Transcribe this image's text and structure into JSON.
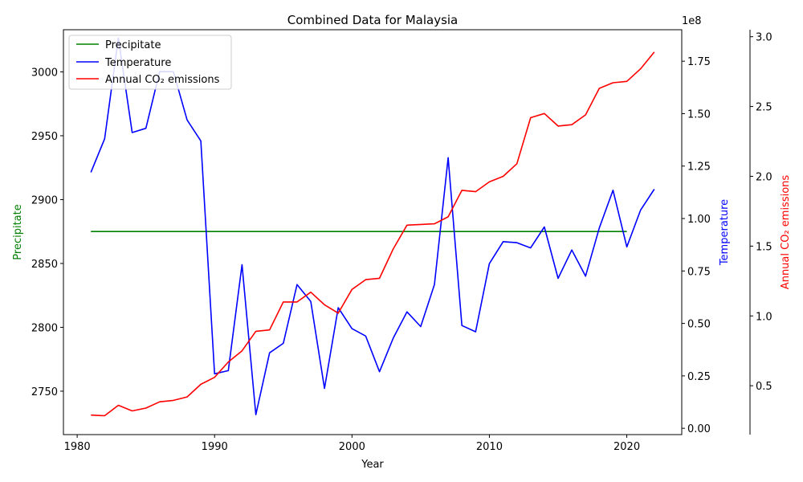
{
  "chart_data": {
    "type": "line",
    "title": "Combined Data for Malaysia",
    "xlabel": "Year",
    "xlim": [
      1979.0,
      2024.0
    ],
    "x_ticks": [
      1980,
      1990,
      2000,
      2010,
      2020
    ],
    "axes": {
      "left": {
        "label": "Precipitate",
        "color": "#008000",
        "ylim": [
          2716,
          3033
        ],
        "ticks": [
          2750,
          2800,
          2850,
          2900,
          2950,
          3000
        ]
      },
      "right1": {
        "label": "Temperature",
        "color": "#0000ff",
        "ylim": [
          -3000000,
          190000000
        ],
        "ticks": [
          0,
          25000000,
          50000000,
          75000000,
          100000000,
          125000000,
          150000000,
          175000000
        ],
        "tick_labels": [
          "0.00",
          "0.25",
          "0.50",
          "0.75",
          "1.00",
          "1.25",
          "1.50",
          "1.75"
        ],
        "offset_text": "1e8"
      },
      "right2": {
        "label": "Annual CO₂ emissions",
        "color": "#ff0000",
        "ylim": [
          0.15,
          3.05
        ],
        "ticks": [
          0.5,
          1.0,
          1.5,
          2.0,
          2.5,
          3.0
        ],
        "tick_labels": [
          "0.5",
          "1.0",
          "1.5",
          "2.0",
          "2.5",
          "3.0"
        ]
      }
    },
    "legend": {
      "placement": "top-left",
      "entries": [
        "Precipitate",
        "Temperature",
        "Annual CO₂ emissions"
      ]
    },
    "series": [
      {
        "name": "Precipitate",
        "axis": "left",
        "color": "#008000",
        "x": [
          1981,
          1982,
          1983,
          1984,
          1985,
          1986,
          1987,
          1988,
          1989,
          1990,
          1991,
          1992,
          1993,
          1994,
          1995,
          1996,
          1997,
          1998,
          1999,
          2000,
          2001,
          2002,
          2003,
          2004,
          2005,
          2006,
          2007,
          2008,
          2009,
          2010,
          2011,
          2012,
          2013,
          2014,
          2015,
          2016,
          2017,
          2018,
          2019,
          2020
        ],
        "values": [
          2875,
          2875,
          2875,
          2875,
          2875,
          2875,
          2875,
          2875,
          2875,
          2875,
          2875,
          2875,
          2875,
          2875,
          2875,
          2875,
          2875,
          2875,
          2875,
          2875,
          2875,
          2875,
          2875,
          2875,
          2875,
          2875,
          2875,
          2875,
          2875,
          2875,
          2875,
          2875,
          2875,
          2875,
          2875,
          2875,
          2875,
          2875,
          2875,
          2875
        ]
      },
      {
        "name": "Temperature",
        "axis": "right1",
        "color": "#0000ff",
        "x": [
          1981,
          1982,
          1983,
          1984,
          1985,
          1986,
          1987,
          1988,
          1989,
          1990,
          1991,
          1992,
          1993,
          1994,
          1995,
          1996,
          1997,
          1998,
          1999,
          2000,
          2001,
          2002,
          2003,
          2004,
          2005,
          2006,
          2007,
          2008,
          2009,
          2010,
          2011,
          2012,
          2013,
          2014,
          2015,
          2016,
          2017,
          2018,
          2019,
          2020,
          2021,
          2022
        ],
        "values": [
          122000000,
          138000000,
          186000000,
          141000000,
          143000000,
          170000000,
          170000000,
          147000000,
          137000000,
          26000000,
          27500000,
          78000000,
          6500000,
          36000000,
          40500000,
          68500000,
          60500000,
          19000000,
          57500000,
          47500000,
          44000000,
          27000000,
          43000000,
          55500000,
          48500000,
          68500000,
          129000000,
          49000000,
          46000000,
          78500000,
          89000000,
          88500000,
          86000000,
          96000000,
          71500000,
          85000000,
          72500000,
          95500000,
          113500000,
          86500000,
          104000000,
          114000000
        ]
      },
      {
        "name": "Annual CO₂ emissions",
        "axis": "right2",
        "color": "#ff0000",
        "x": [
          1981,
          1982,
          1983,
          1984,
          1985,
          1986,
          1987,
          1988,
          1989,
          1990,
          1991,
          1992,
          1993,
          1994,
          1995,
          1996,
          1997,
          1998,
          1999,
          2000,
          2001,
          2002,
          2003,
          2004,
          2005,
          2006,
          2007,
          2008,
          2009,
          2010,
          2011,
          2012,
          2013,
          2014,
          2015,
          2016,
          2017,
          2018,
          2019,
          2020,
          2021,
          2022
        ],
        "values": [
          0.29,
          0.285,
          0.36,
          0.32,
          0.34,
          0.385,
          0.395,
          0.42,
          0.51,
          0.56,
          0.67,
          0.75,
          0.89,
          0.9,
          1.1,
          1.1,
          1.17,
          1.08,
          1.02,
          1.19,
          1.26,
          1.27,
          1.48,
          1.65,
          1.655,
          1.66,
          1.71,
          1.9,
          1.89,
          1.96,
          2.0,
          2.09,
          2.42,
          2.45,
          2.36,
          2.37,
          2.44,
          2.63,
          2.67,
          2.68,
          2.77,
          2.89
        ]
      }
    ]
  }
}
